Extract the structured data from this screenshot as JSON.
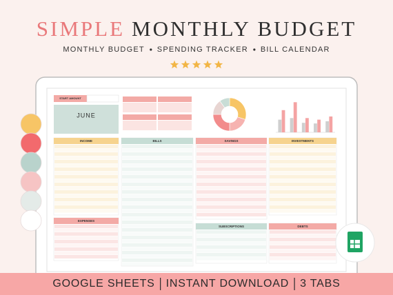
{
  "header": {
    "title_accent": "SIMPLE",
    "title_rest": "MONTHLY BUDGET",
    "subtitle": [
      "MONTHLY BUDGET",
      "SPENDING TRACKER",
      "BILL CALENDAR"
    ]
  },
  "rating": {
    "stars": 5,
    "color": "#f2b545"
  },
  "sheet": {
    "start_label": "START AMOUNT",
    "month": "JUNE",
    "donut": {
      "values": [
        30,
        20,
        25,
        15,
        10
      ],
      "colors": [
        "#f7c566",
        "#f6b3b0",
        "#f28c8c",
        "#e8d5d2",
        "#c9ddd6"
      ]
    },
    "bars": {
      "series": [
        {
          "color": "#cfcfcf",
          "values": [
            40,
            45,
            30,
            28,
            35
          ]
        },
        {
          "color": "#f4a3a3",
          "values": [
            70,
            95,
            45,
            40,
            50
          ]
        }
      ],
      "ylim": [
        0,
        100
      ]
    },
    "sections": [
      {
        "title": "INCOME",
        "color": "#f6d38e"
      },
      {
        "title": "BILLS",
        "color": "#c6ddd5"
      },
      {
        "title": "SAVINGS",
        "color": "#f3aaa6"
      },
      {
        "title": "INVESTMENTS",
        "color": "#f6d38e"
      },
      {
        "title": "EXPENSES",
        "color": "#f3aaa6"
      },
      {
        "title": "SUBSCRIPTIONS",
        "color": "#c6ddd5"
      },
      {
        "title": "DEBTS",
        "color": "#f3aaa6"
      }
    ]
  },
  "swatches": [
    "#f7c566",
    "#f26a6d",
    "#b9d3cc",
    "#f6c4c4",
    "#e4ebe8",
    "#ffffff"
  ],
  "banner": {
    "items": [
      "GOOGLE SHEETS",
      "INSTANT DOWNLOAD",
      "3 TABS"
    ],
    "color": "#f7a7a6"
  }
}
